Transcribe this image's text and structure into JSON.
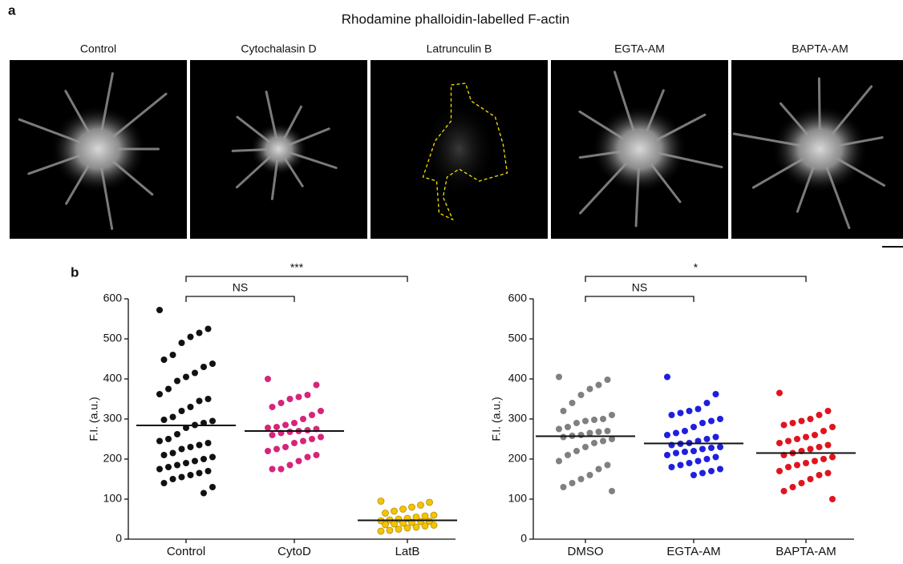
{
  "panel_a": {
    "label": "a",
    "title": "Rhodamine phalloidin-labelled F-actin",
    "image_labels": [
      "Control",
      "Cytochalasin D",
      "Latrunculin B",
      "EGTA-AM",
      "BAPTA-AM"
    ]
  },
  "panel_b": {
    "label": "b"
  },
  "chart_data": [
    {
      "type": "strip",
      "y_label": "F.I. (a.u.)",
      "categories": [
        "Control",
        "CytoD",
        "LatB"
      ],
      "ylim": [
        0,
        600
      ],
      "yticks": [
        0,
        100,
        200,
        300,
        400,
        500,
        600
      ],
      "series": [
        {
          "color": "#111111",
          "mean": 284,
          "values": [
            572,
            525,
            515,
            505,
            490,
            460,
            448,
            438,
            430,
            415,
            405,
            395,
            375,
            362,
            350,
            345,
            330,
            320,
            305,
            298,
            295,
            290,
            285,
            278,
            262,
            250,
            245,
            240,
            235,
            230,
            225,
            215,
            210,
            205,
            200,
            195,
            190,
            185,
            180,
            175,
            170,
            165,
            160,
            155,
            150,
            140,
            130,
            115
          ]
        },
        {
          "color": "#d6247a",
          "mean": 270,
          "values": [
            400,
            385,
            360,
            355,
            350,
            340,
            330,
            320,
            310,
            300,
            290,
            285,
            280,
            278,
            275,
            272,
            270,
            268,
            265,
            260,
            255,
            250,
            245,
            240,
            230,
            225,
            220,
            210,
            205,
            195,
            185,
            175,
            175
          ]
        },
        {
          "color": "#f5c400",
          "mean": 47,
          "values": [
            95,
            92,
            85,
            80,
            75,
            70,
            65,
            60,
            58,
            55,
            52,
            50,
            48,
            46,
            45,
            44,
            42,
            40,
            38,
            36,
            35,
            33,
            30,
            28,
            25,
            22,
            20
          ]
        }
      ],
      "comparisons": [
        {
          "from": 0,
          "to": 1,
          "label": "NS"
        },
        {
          "from": 0,
          "to": 2,
          "label": "***"
        }
      ]
    },
    {
      "type": "strip",
      "y_label": "F.I. (a.u.)",
      "categories": [
        "DMSO",
        "EGTA-AM",
        "BAPTA-AM"
      ],
      "ylim": [
        0,
        600
      ],
      "yticks": [
        0,
        100,
        200,
        300,
        400,
        500,
        600
      ],
      "series": [
        {
          "color": "#808080",
          "mean": 257,
          "values": [
            405,
            398,
            385,
            375,
            360,
            340,
            320,
            310,
            300,
            298,
            295,
            290,
            280,
            275,
            270,
            268,
            265,
            260,
            258,
            255,
            250,
            245,
            240,
            230,
            220,
            210,
            195,
            185,
            175,
            160,
            150,
            140,
            130,
            120
          ]
        },
        {
          "color": "#1f1fe0",
          "mean": 239,
          "values": [
            405,
            362,
            340,
            325,
            320,
            315,
            310,
            300,
            295,
            290,
            280,
            270,
            265,
            260,
            255,
            250,
            245,
            240,
            238,
            235,
            230,
            228,
            225,
            220,
            218,
            215,
            210,
            205,
            200,
            195,
            190,
            185,
            180,
            175,
            170,
            165,
            160
          ]
        },
        {
          "color": "#e0141e",
          "mean": 215,
          "values": [
            365,
            320,
            310,
            300,
            295,
            290,
            285,
            280,
            270,
            260,
            255,
            250,
            245,
            240,
            235,
            230,
            225,
            220,
            215,
            210,
            205,
            200,
            195,
            190,
            185,
            180,
            170,
            165,
            160,
            150,
            140,
            130,
            120,
            100
          ]
        }
      ],
      "comparisons": [
        {
          "from": 0,
          "to": 1,
          "label": "NS"
        },
        {
          "from": 0,
          "to": 2,
          "label": "*"
        }
      ]
    }
  ]
}
